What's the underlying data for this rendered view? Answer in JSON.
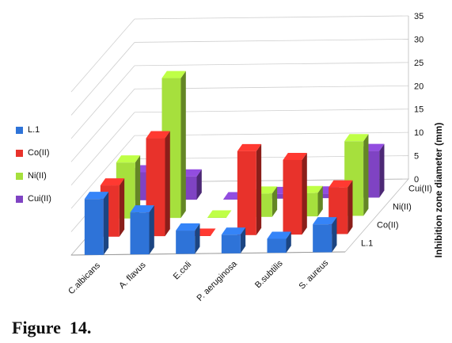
{
  "caption": "Figure  14.",
  "chart_data": {
    "type": "bar",
    "subtype": "3d-clustered-bar",
    "categories": [
      "C.albicans",
      "A. flavus",
      "E.coli",
      "P. aeruginosa",
      "B.subtilis",
      "S. aureus"
    ],
    "series": [
      {
        "name": "L.1",
        "color": "#2e73d8",
        "values": [
          12,
          9,
          5,
          4,
          3,
          6
        ]
      },
      {
        "name": "Co(II)",
        "color": "#e8322b",
        "values": [
          11,
          21,
          0,
          18,
          16,
          10
        ]
      },
      {
        "name": "Ni(II)",
        "color": "#a6e03d",
        "values": [
          12,
          30,
          0,
          5,
          5,
          16
        ]
      },
      {
        "name": "Cui(II)",
        "color": "#7f43c3",
        "values": [
          6,
          5,
          0,
          1,
          1,
          10
        ]
      }
    ],
    "ylabel": "Inhibition zone diameter (mm)",
    "ylim": [
      0,
      35
    ],
    "yticks": [
      "0",
      "5",
      "10",
      "15",
      "20",
      "25",
      "30",
      "35"
    ],
    "legend_position": "left",
    "grid": true
  }
}
